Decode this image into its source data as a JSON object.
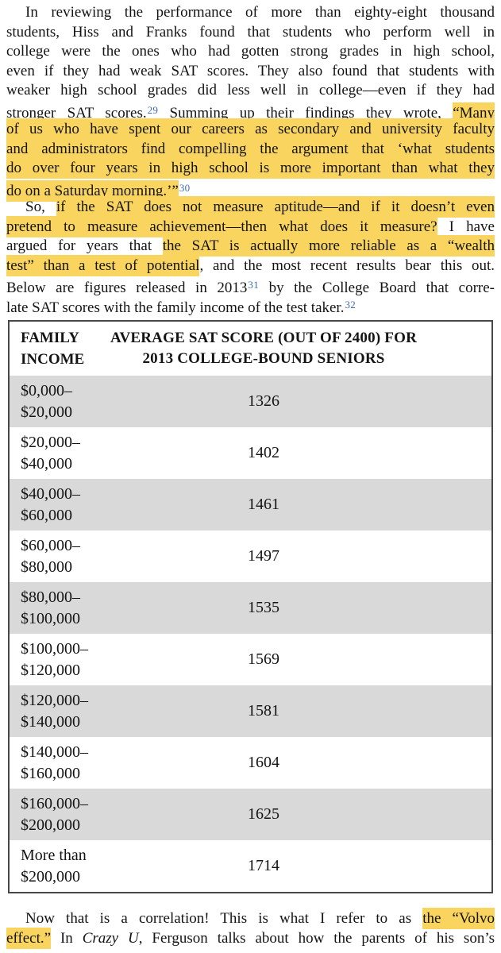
{
  "styles": {
    "highlight_color": "#f9d45f",
    "footnote_color": "#3f6db4",
    "row_shade_color": "#d9d9d9",
    "table_border_color": "#474747",
    "text_color": "#141414",
    "page_background": "#ffffff"
  },
  "paragraphs_top": [
    {
      "lines": [
        {
          "indent": true,
          "segments": [
            {
              "t": "In reviewing the performance of more than eighty-eight thousand"
            }
          ]
        },
        {
          "segments": [
            {
              "t": "students, Hiss and Franks found that students who perform well in"
            }
          ]
        },
        {
          "segments": [
            {
              "t": "college were the ones who had gotten strong grades in high school,"
            }
          ]
        },
        {
          "segments": [
            {
              "t": "even if they had weak SAT scores. They also found that students with"
            }
          ]
        },
        {
          "segments": [
            {
              "t": "weaker high school grades did less well in college—even if they had"
            }
          ]
        },
        {
          "segments": [
            {
              "t": "stronger SAT scores."
            },
            {
              "t": "29",
              "sup": true
            },
            {
              "t": " Summing up their findings they wrote, "
            },
            {
              "t": "“Many",
              "hl": true
            }
          ]
        },
        {
          "segments": [
            {
              "t": "of us who have spent our careers as secondary and university faculty",
              "hl": true
            }
          ]
        },
        {
          "segments": [
            {
              "t": "and administrators find compelling the argument that ‘what students",
              "hl": true
            }
          ]
        },
        {
          "segments": [
            {
              "t": "do over four years in high school is more important than what they",
              "hl": true
            }
          ]
        },
        {
          "last": true,
          "segments": [
            {
              "t": "do on a Saturday morning.’”",
              "hl": true
            },
            {
              "t": "30",
              "sup": true
            }
          ]
        }
      ]
    },
    {
      "lines": [
        {
          "indent": true,
          "segments": [
            {
              "t": "So, "
            },
            {
              "t": "if the SAT does not measure aptitude—and if it doesn’t even",
              "hl": true
            }
          ]
        },
        {
          "segments": [
            {
              "t": "pretend to measure achievement—then what does it measure?",
              "hl": true
            },
            {
              "t": " I have"
            }
          ]
        },
        {
          "segments": [
            {
              "t": "argued for years that "
            },
            {
              "t": "the SAT is actually more reliable as a “wealth",
              "hl": true
            }
          ]
        },
        {
          "segments": [
            {
              "t": "test” than a test of potential",
              "hl": true
            },
            {
              "t": ", and the most recent results bear this out."
            }
          ]
        },
        {
          "segments": [
            {
              "t": "Below are figures released in 2013"
            },
            {
              "t": "31",
              "sup": true
            },
            {
              "t": " by the College Board that corre-"
            }
          ]
        },
        {
          "last": true,
          "segments": [
            {
              "t": "late SAT scores with the family income of the test taker."
            },
            {
              "t": "32",
              "sup": true
            }
          ]
        }
      ]
    }
  ],
  "paragraphs_bottom": [
    {
      "lines": [
        {
          "indent": true,
          "segments": [
            {
              "t": "Now that is a correlation! This is what I refer to as "
            },
            {
              "t": "the “Volvo",
              "hl": true
            }
          ]
        },
        {
          "segments": [
            {
              "t": "effect.”",
              "hl": true
            },
            {
              "t": " In "
            },
            {
              "t": "Crazy U",
              "it": true
            },
            {
              "t": ", Ferguson talks about how the parents of his son’s"
            }
          ]
        }
      ]
    }
  ],
  "table": {
    "header": {
      "col1_lines": [
        "FAMILY",
        "INCOME"
      ],
      "col2_lines": [
        "AVERAGE SAT SCORE (OUT OF 2400) FOR",
        "2013 COLLEGE-BOUND SENIORS"
      ]
    },
    "rows": [
      {
        "income_lines": [
          "$0,000–",
          "$20,000"
        ],
        "score": "1326",
        "shaded": true
      },
      {
        "income_lines": [
          "$20,000–",
          "$40,000"
        ],
        "score": "1402",
        "shaded": false
      },
      {
        "income_lines": [
          "$40,000–",
          "$60,000"
        ],
        "score": "1461",
        "shaded": true
      },
      {
        "income_lines": [
          "$60,000–",
          "$80,000"
        ],
        "score": "1497",
        "shaded": false
      },
      {
        "income_lines": [
          "$80,000–",
          "$100,000"
        ],
        "score": "1535",
        "shaded": true
      },
      {
        "income_lines": [
          "$100,000–",
          "$120,000"
        ],
        "score": "1569",
        "shaded": false
      },
      {
        "income_lines": [
          "$120,000–",
          "$140,000"
        ],
        "score": "1581",
        "shaded": true
      },
      {
        "income_lines": [
          "$140,000–",
          "$160,000"
        ],
        "score": "1604",
        "shaded": false
      },
      {
        "income_lines": [
          "$160,000–",
          "$200,000"
        ],
        "score": "1625",
        "shaded": true
      },
      {
        "income_lines": [
          "More than",
          "$200,000"
        ],
        "score": "1714",
        "shaded": false
      }
    ]
  }
}
